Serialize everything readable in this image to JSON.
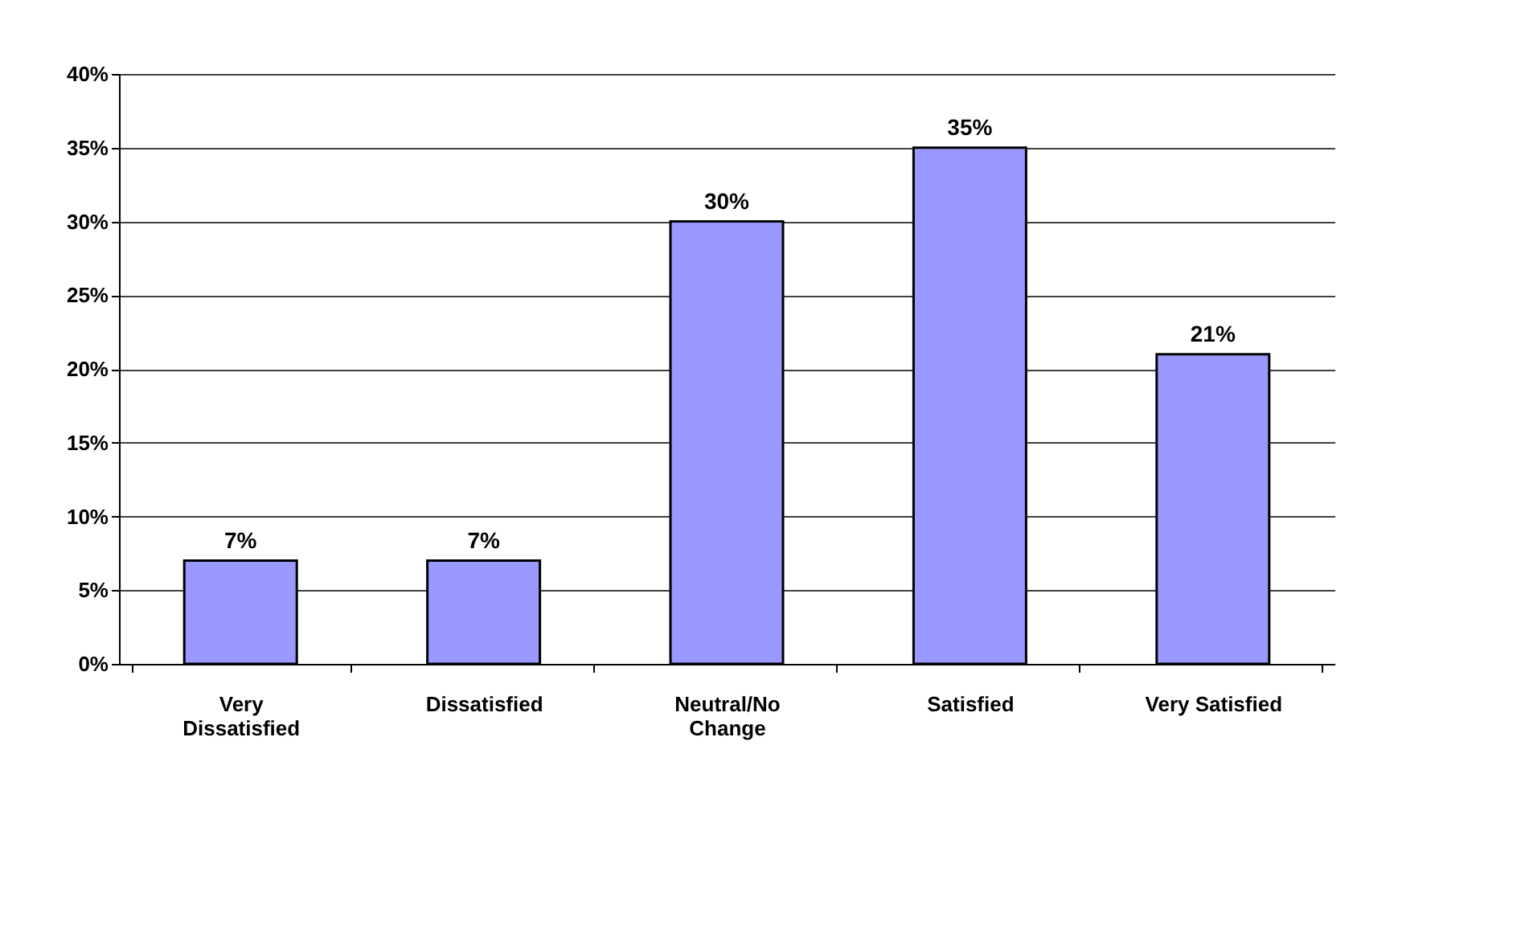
{
  "chart_data": {
    "type": "bar",
    "categories": [
      "Very Dissatisfied",
      "Dissatisfied",
      "Neutral/No Change",
      "Satisfied",
      "Very Satisfied"
    ],
    "values": [
      7,
      7,
      30,
      35,
      21
    ],
    "value_labels": [
      "7%",
      "7%",
      "30%",
      "35%",
      "21%"
    ],
    "color": "#9999ff",
    "ylim": [
      0,
      40
    ],
    "yticks": [
      {
        "value": 0,
        "label": "0%"
      },
      {
        "value": 5,
        "label": "5%"
      },
      {
        "value": 10,
        "label": "10%"
      },
      {
        "value": 15,
        "label": "15%"
      },
      {
        "value": 20,
        "label": "20%"
      },
      {
        "value": 25,
        "label": "25%"
      },
      {
        "value": 30,
        "label": "30%"
      },
      {
        "value": 35,
        "label": "35%"
      },
      {
        "value": 40,
        "label": "40%"
      }
    ],
    "grid": "y"
  }
}
